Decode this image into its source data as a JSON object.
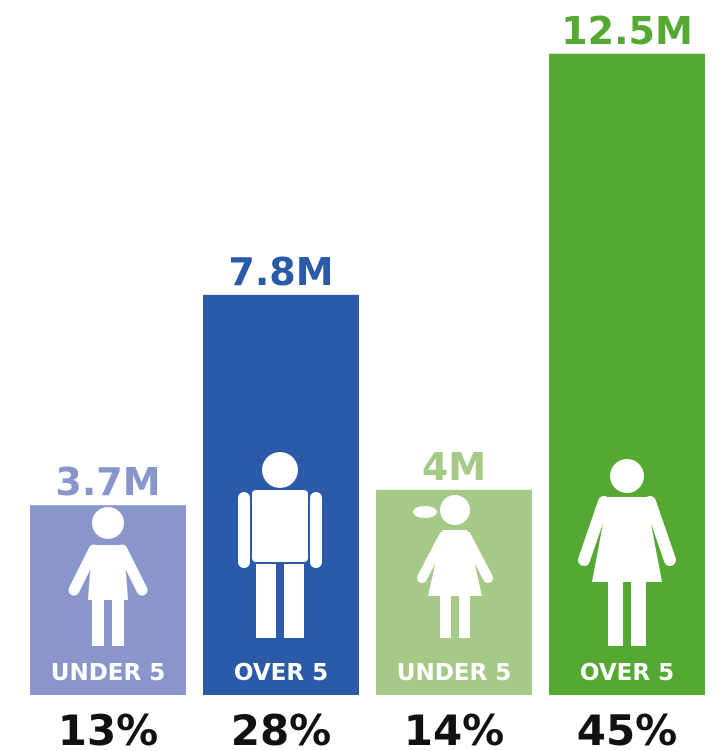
{
  "chart_data": {
    "type": "bar",
    "categories": [
      "UNDER 5",
      "OVER 5",
      "UNDER 5",
      "OVER 5"
    ],
    "values": [
      3.7,
      7.8,
      4,
      12.5
    ],
    "value_labels": [
      "3.7M",
      "7.8M",
      "4M",
      "12.5M"
    ],
    "colors": [
      "#8a96cb",
      "#2a5aa8",
      "#a7c987",
      "#55a832"
    ],
    "percentages": [
      13,
      28,
      14,
      45
    ],
    "percentage_labels": [
      "13%",
      "28%",
      "14%",
      "45%"
    ]
  }
}
